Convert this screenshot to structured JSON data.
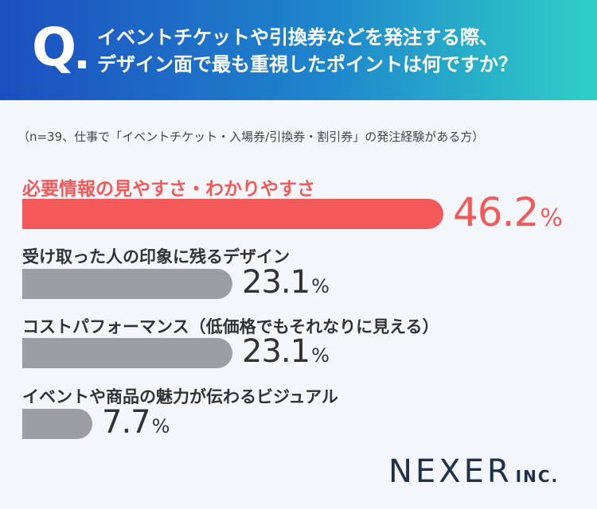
{
  "header": {
    "q_mark": "Q",
    "question_line1": "イベントチケットや引換券などを発注する際、",
    "question_line2": "デザイン面で最も重視したポイントは何ですか？"
  },
  "note": "（n=39、仕事で「イベントチケット・入場券/引換券・割引券」の発注経験がある方）",
  "chart_data": {
    "type": "bar",
    "orientation": "horizontal",
    "categories": [
      "必要情報の見やすさ・わかりやすさ",
      "受け取った人の印象に残るデザイン",
      "コストパフォーマンス（低価格でもそれなりに見える）",
      "イベントや商品の魅力が伝わるビジュアル"
    ],
    "values": [
      46.2,
      23.1,
      23.1,
      7.7
    ],
    "value_labels": [
      "46.2",
      "23.1",
      "23.1",
      "7.7"
    ],
    "unit": "%",
    "highlight_index": 0,
    "colors": {
      "highlight": "#f25a5a",
      "default": "#9c9ea3"
    }
  },
  "brand": {
    "name": "NEXER",
    "suffix": "INC."
  },
  "colors": {
    "header_start": "#1c4fc0",
    "header_end": "#2fd0c6",
    "logo": "#1f2f4c"
  }
}
